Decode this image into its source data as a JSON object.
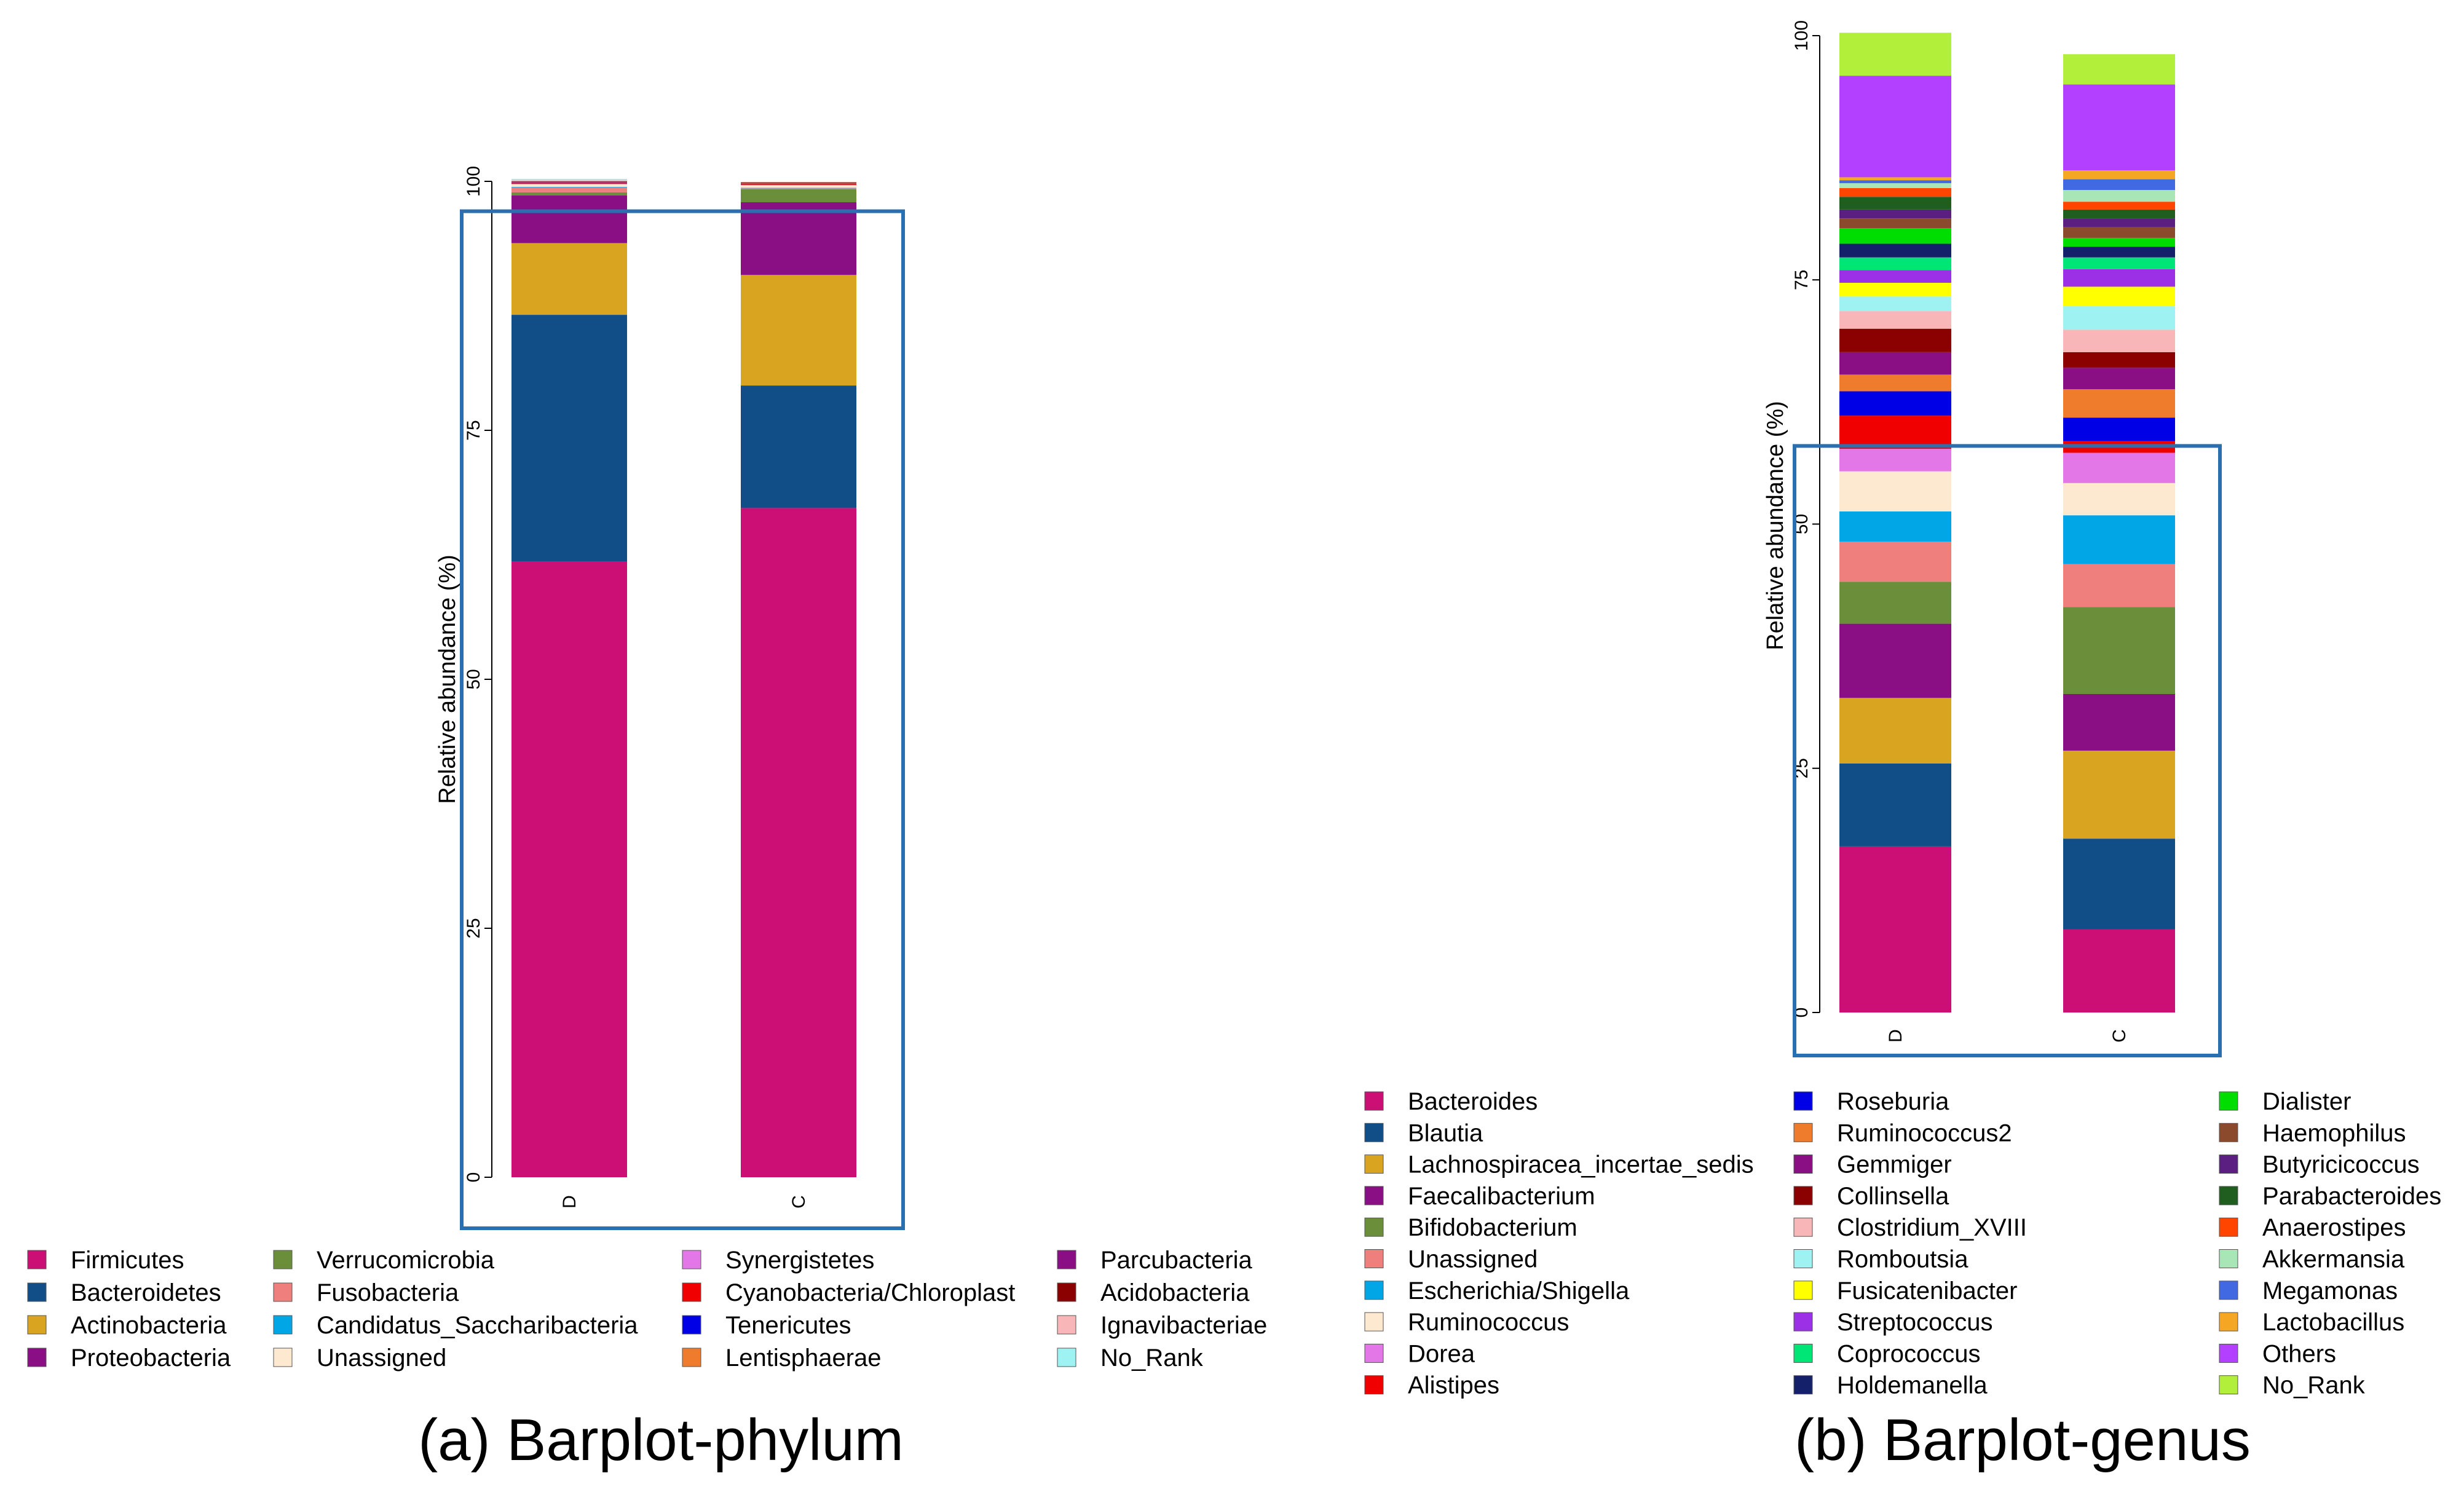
{
  "chart_data": [
    {
      "type": "bar",
      "stacked": true,
      "title": "(a) Barplot-phylum",
      "xlabel": "",
      "ylabel": "Relative abundance (%)",
      "ylim": [
        0,
        100
      ],
      "yticks": [
        "0",
        "25",
        "50",
        "75",
        "100"
      ],
      "categories": [
        "D",
        "C"
      ],
      "highlight_box": {
        "from_percent": 0,
        "to_percent": 97,
        "color": "#2a6fb0"
      },
      "series": [
        {
          "name": "Firmicutes",
          "color": "#cc0f75",
          "values": [
            61.8,
            67.2
          ]
        },
        {
          "name": "Bacteroidetes",
          "color": "#114e88",
          "values": [
            24.8,
            12.3
          ]
        },
        {
          "name": "Actinobacteria",
          "color": "#d9a520",
          "values": [
            7.2,
            11.1
          ]
        },
        {
          "name": "Proteobacteria",
          "color": "#8a0f84",
          "values": [
            4.8,
            7.3
          ]
        },
        {
          "name": "Verrucomicrobia",
          "color": "#6b8e3b",
          "values": [
            0.3,
            1.3
          ]
        },
        {
          "name": "Fusobacteria",
          "color": "#ee7f7c",
          "values": [
            0.5,
            0.1
          ]
        },
        {
          "name": "Candidatus_Saccharibacteria",
          "color": "#00a6e6",
          "values": [
            0.05,
            0.05
          ]
        },
        {
          "name": "Unassigned",
          "color": "#fde8d0",
          "values": [
            0.25,
            0.25
          ]
        },
        {
          "name": "Synergistetes",
          "color": "#e377e8",
          "values": [
            0.05,
            0.05
          ]
        },
        {
          "name": "Cyanobacteria/Chloroplast",
          "color": "#f00000",
          "values": [
            0.05,
            0.05
          ]
        },
        {
          "name": "Tenericutes",
          "color": "#0000e6",
          "values": [
            0.05,
            0.05
          ]
        },
        {
          "name": "Lentisphaerae",
          "color": "#ef7b2c",
          "values": [
            0.05,
            0.05
          ]
        },
        {
          "name": "Parcubacteria",
          "color": "#8a0f84",
          "values": [
            0.05,
            0.05
          ]
        },
        {
          "name": "Acidobacteria",
          "color": "#8b0000",
          "values": [
            0.05,
            0.05
          ]
        },
        {
          "name": "Ignavibacteriae",
          "color": "#f8b6b8",
          "values": [
            0.15,
            0.05
          ]
        },
        {
          "name": "No_Rank",
          "color": "#9ef2f2",
          "values": [
            0.1,
            0.0
          ]
        }
      ]
    },
    {
      "type": "bar",
      "stacked": true,
      "title": "(b) Barplot-genus",
      "xlabel": "",
      "ylabel": "Relative abundance (%)",
      "ylim": [
        0,
        100
      ],
      "yticks": [
        "0",
        "25",
        "50",
        "75",
        "100"
      ],
      "categories": [
        "D",
        "C"
      ],
      "highlight_box": {
        "from_percent": 0,
        "to_percent": 58,
        "color": "#2a6fb0"
      },
      "series": [
        {
          "name": "Bacteroides",
          "color": "#cc0f75",
          "values": [
            17.0,
            8.5
          ]
        },
        {
          "name": "Blautia",
          "color": "#114e88",
          "values": [
            8.5,
            9.3
          ]
        },
        {
          "name": "Lachnospiracea_incertae_sedis",
          "color": "#d9a520",
          "values": [
            6.7,
            9.0
          ]
        },
        {
          "name": "Faecalibacterium",
          "color": "#8a0f84",
          "values": [
            7.6,
            5.8
          ]
        },
        {
          "name": "Bifidobacterium",
          "color": "#6b8e3b",
          "values": [
            4.3,
            8.9
          ]
        },
        {
          "name": "Unassigned",
          "color": "#ee7f7c",
          "values": [
            4.1,
            4.4
          ]
        },
        {
          "name": "Escherichia/Shigella",
          "color": "#00a6e6",
          "values": [
            3.1,
            5.0
          ]
        },
        {
          "name": "Ruminococcus",
          "color": "#fde8d0",
          "values": [
            4.1,
            3.3
          ]
        },
        {
          "name": "Dorea",
          "color": "#e377e8",
          "values": [
            2.3,
            3.1
          ]
        },
        {
          "name": "Alistipes",
          "color": "#f00000",
          "values": [
            3.4,
            1.2
          ]
        },
        {
          "name": "Roseburia",
          "color": "#0000e6",
          "values": [
            2.5,
            2.4
          ]
        },
        {
          "name": "Ruminococcus2",
          "color": "#ef7b2c",
          "values": [
            1.7,
            2.9
          ]
        },
        {
          "name": "Gemmiger",
          "color": "#8a0f84",
          "values": [
            2.3,
            2.2
          ]
        },
        {
          "name": "Collinsella",
          "color": "#8b0000",
          "values": [
            2.4,
            1.6
          ]
        },
        {
          "name": "Clostridium_XVIII",
          "color": "#f8b6b8",
          "values": [
            1.8,
            2.3
          ]
        },
        {
          "name": "Romboutsia",
          "color": "#9ef2f2",
          "values": [
            1.5,
            2.4
          ]
        },
        {
          "name": "Fusicatenibacter",
          "color": "#ffff00",
          "values": [
            1.4,
            2.0
          ]
        },
        {
          "name": "Streptococcus",
          "color": "#9b30e6",
          "values": [
            1.3,
            1.8
          ]
        },
        {
          "name": "Coprococcus",
          "color": "#00e676",
          "values": [
            1.3,
            1.2
          ]
        },
        {
          "name": "Holdemanella",
          "color": "#15206b",
          "values": [
            1.4,
            1.1
          ]
        },
        {
          "name": "Dialister",
          "color": "#00dd00",
          "values": [
            1.6,
            0.9
          ]
        },
        {
          "name": "Haemophilus",
          "color": "#8b4a2b",
          "values": [
            1.0,
            1.1
          ]
        },
        {
          "name": "Butyricicoccus",
          "color": "#5b1f82",
          "values": [
            0.9,
            0.9
          ]
        },
        {
          "name": "Parabacteroides",
          "color": "#1f5e1f",
          "values": [
            1.3,
            0.9
          ]
        },
        {
          "name": "Anaerostipes",
          "color": "#ff4500",
          "values": [
            0.9,
            0.8
          ]
        },
        {
          "name": "Akkermansia",
          "color": "#a8e6b8",
          "values": [
            0.5,
            1.2
          ]
        },
        {
          "name": "Megamonas",
          "color": "#4169e1",
          "values": [
            0.3,
            1.1
          ]
        },
        {
          "name": "Lactobacillus",
          "color": "#f5a623",
          "values": [
            0.3,
            0.9
          ]
        },
        {
          "name": "Others",
          "color": "#b440ff",
          "values": [
            10.4,
            8.8
          ]
        },
        {
          "name": "No_Rank",
          "color": "#b2ef3a",
          "values": [
            4.4,
            3.1
          ]
        }
      ]
    }
  ]
}
